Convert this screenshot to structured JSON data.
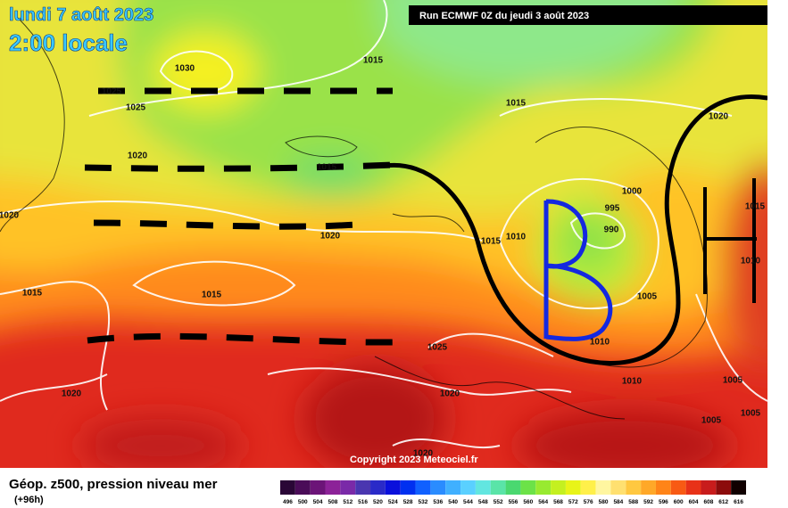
{
  "header": {
    "date": "lundi 7 août 2023",
    "time": "2:00 locale",
    "run": "Run ECMWF 0Z du jeudi 3 août 2023"
  },
  "map": {
    "copyright": "Copyright 2023 Meteociel.fr",
    "isobar_labels": [
      "1030",
      "1025",
      "1025",
      "1015",
      "1015",
      "1020",
      "1020",
      "1015",
      "1000",
      "995",
      "990",
      "1015",
      "1020",
      "1020",
      "1015",
      "1010",
      "1010",
      "1015",
      "1015",
      "1005",
      "1010",
      "1025",
      "1020",
      "1020",
      "1010",
      "1005",
      "1005",
      "1005",
      "1020"
    ]
  },
  "legend": {
    "title": "Géop. z500, pression niveau mer",
    "subtitle": "(+96h)",
    "scale": [
      "496",
      "500",
      "504",
      "508",
      "512",
      "516",
      "520",
      "524",
      "528",
      "532",
      "536",
      "540",
      "544",
      "548",
      "552",
      "556",
      "560",
      "564",
      "568",
      "572",
      "576",
      "580",
      "584",
      "588",
      "592",
      "596",
      "600",
      "604",
      "608",
      "612",
      "616"
    ],
    "colors": [
      "#2a0636",
      "#4a0c58",
      "#6c1478",
      "#8c2298",
      "#7a2aa8",
      "#4a36b0",
      "#2a2ac8",
      "#0a10dc",
      "#0030f0",
      "#1060ff",
      "#2a8cff",
      "#40b0ff",
      "#5ad0ff",
      "#62e6e0",
      "#5ae4a8",
      "#4ad870",
      "#6ce248",
      "#98ea30",
      "#c4f020",
      "#e8f418",
      "#fff04a",
      "#fff6a0",
      "#ffe070",
      "#ffc840",
      "#ffa828",
      "#ff8418",
      "#f85a14",
      "#e83218",
      "#c81c1c",
      "#8c0c0c",
      "#100000"
    ]
  }
}
